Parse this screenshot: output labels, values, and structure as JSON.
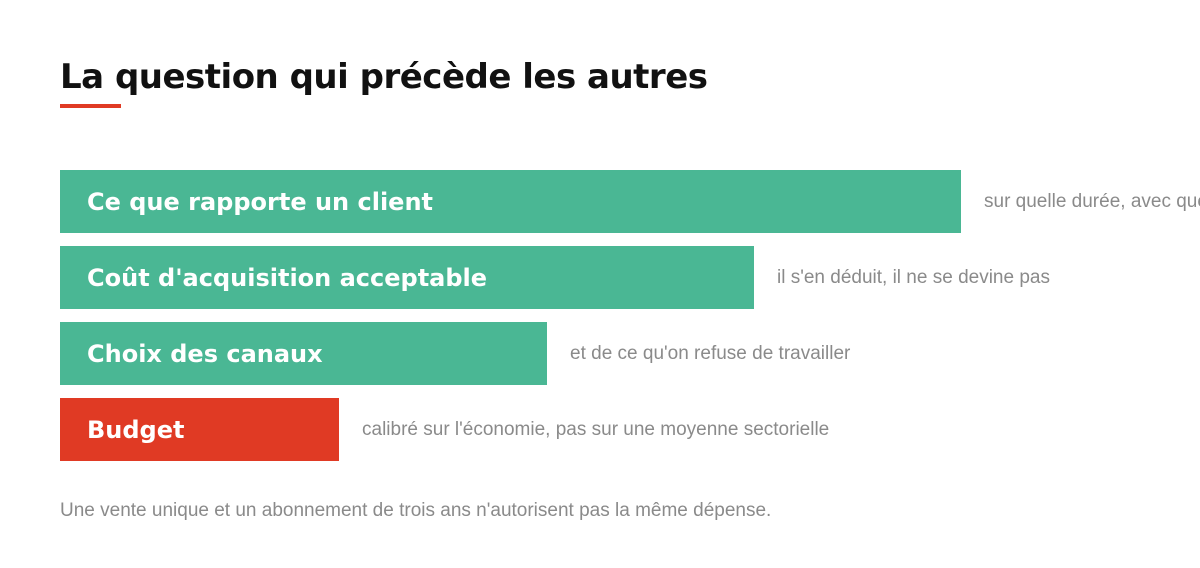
{
  "title": "La question qui précède les autres",
  "colors": {
    "accent": "#e03a24",
    "bar_green": "#4ab794",
    "bar_red": "#e03a24",
    "note_text": "#8a8a8a",
    "title_text": "#111111"
  },
  "steps": [
    {
      "label": "Ce que rapporte un client",
      "note": "sur quelle durée, avec quelle marge",
      "color": "green",
      "bar_fraction": 1.0
    },
    {
      "label": "Coût d'acquisition acceptable",
      "note": "il s'en déduit, il ne se devine pas",
      "color": "green",
      "bar_fraction": 0.77
    },
    {
      "label": "Choix des canaux",
      "note": "et de ce qu'on refuse de travailler",
      "color": "green",
      "bar_fraction": 0.54
    },
    {
      "label": "Budget",
      "note": "calibré sur l'économie, pas sur une moyenne sectorielle",
      "color": "red",
      "bar_fraction": 0.31
    }
  ],
  "footer": "Une vente unique et un abonnement de trois ans n'autorisent pas la même dépense."
}
